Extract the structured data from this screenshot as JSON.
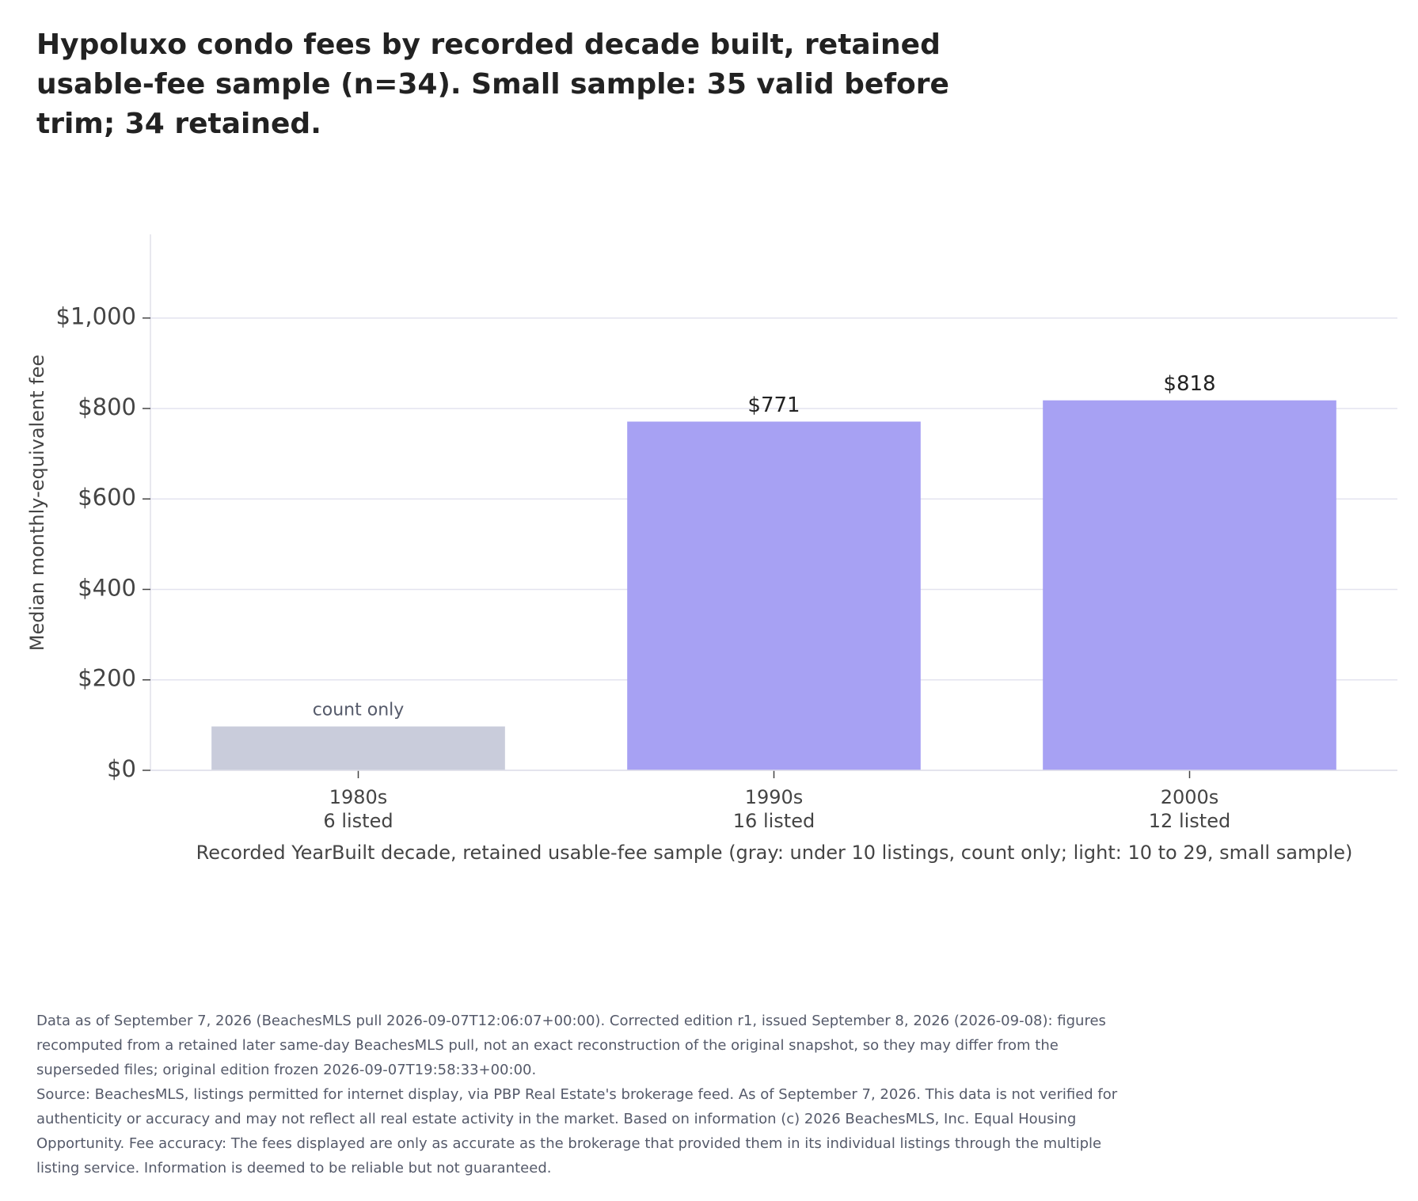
{
  "chart_data": {
    "type": "bar",
    "title": "Hypoluxo condo fees by recorded decade built, retained usable-fee sample (n=34). Small sample: 35 valid before trim; 34 retained.",
    "ylabel": "Median monthly-equivalent fee",
    "xlabel": "Recorded YearBuilt decade, retained usable-fee sample (gray: under 10 listings, count only; light: 10 to 29, small sample)",
    "categories": [
      "1980s",
      "1990s",
      "2000s"
    ],
    "category_counts": [
      "6 listed",
      "16 listed",
      "12 listed"
    ],
    "values": [
      97,
      771,
      818
    ],
    "value_labels": [
      "count only",
      "$771",
      "$818"
    ],
    "colors": [
      "#c9ccdb",
      "#a7a1f3",
      "#a7a1f3"
    ],
    "ylim": [
      0,
      1185
    ],
    "yticks": [
      {
        "value": 0,
        "label": "$0"
      },
      {
        "value": 200,
        "label": "$200"
      },
      {
        "value": 400,
        "label": "$400"
      },
      {
        "value": 600,
        "label": "$600"
      },
      {
        "value": 800,
        "label": "$800"
      },
      {
        "value": 1000,
        "label": "$1,000"
      }
    ],
    "grid": true,
    "notes": [
      "Data as of September 7, 2026 (BeachesMLS pull 2026-09-07T12:06:07+00:00). Corrected edition r1, issued September 8, 2026 (2026-09-08): figures recomputed from a retained later same-day BeachesMLS pull, not an exact reconstruction of the original snapshot, so they may differ from the superseded files; original edition frozen 2026-09-07T19:58:33+00:00.",
      "Source: BeachesMLS, listings permitted for internet display, via PBP Real Estate's brokerage feed. As of September 7, 2026. This data is not verified for authenticity or accuracy and may not reflect all real estate activity in the market. Based on information (c) 2026 BeachesMLS, Inc. Equal Housing Opportunity. Fee accuracy: The fees displayed are only as accurate as the brokerage that provided them in its individual listings through the multiple listing service. Information is deemed to be reliable but not guaranteed."
    ]
  }
}
